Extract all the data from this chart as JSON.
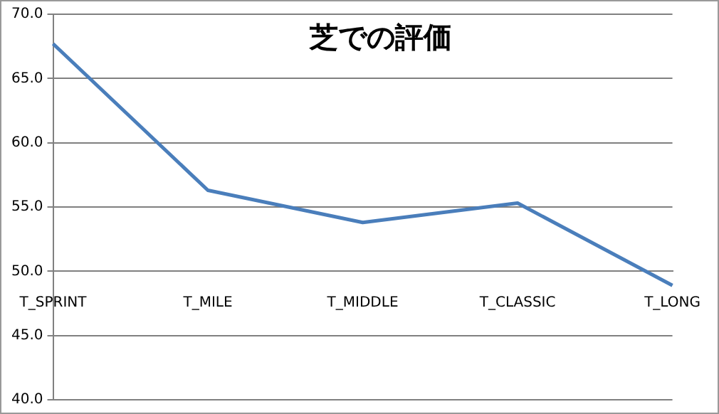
{
  "chart_data": {
    "type": "line",
    "title": "芝での評価",
    "categories": [
      "T_SPRINT",
      "T_MILE",
      "T_MIDDLE",
      "T_CLASSIC",
      "T_LONG"
    ],
    "series": [
      {
        "color": "#4a7ebb",
        "values": [
          67.7,
          56.3,
          53.8,
          55.3,
          48.9
        ]
      }
    ],
    "ylim": [
      40,
      70
    ],
    "yticks": [
      {
        "value": 40,
        "label": "40.0"
      },
      {
        "value": 45,
        "label": "45.0"
      },
      {
        "value": 50,
        "label": "50.0"
      },
      {
        "value": 55,
        "label": "55.0"
      },
      {
        "value": 60,
        "label": "60.0"
      },
      {
        "value": 65,
        "label": "65.0"
      },
      {
        "value": 70,
        "label": "70.0"
      }
    ],
    "grid": "y",
    "legend": false,
    "marker": "none",
    "line_style": "solid"
  }
}
